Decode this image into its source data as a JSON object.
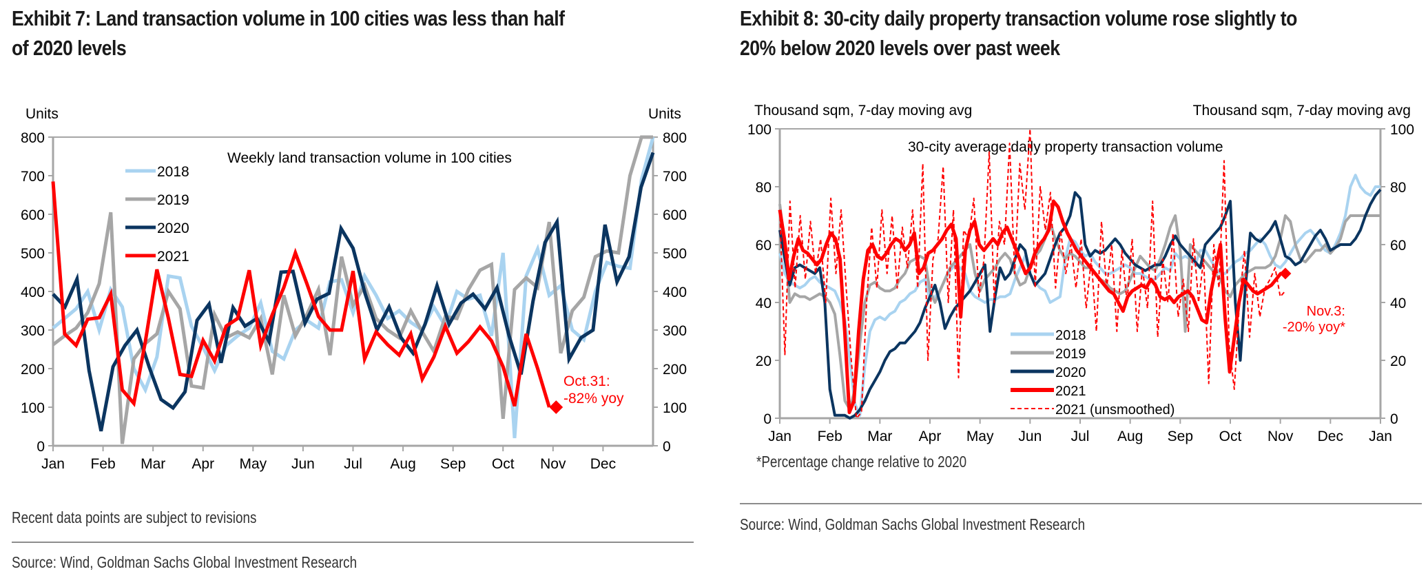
{
  "exhibit7": {
    "title_line1": "Exhibit 7: Land transaction volume in 100 cities was less than half",
    "title_line2": "of 2020 levels",
    "note": "Recent data points are subject to revisions",
    "source": "Source: Wind, Goldman Sachs Global Investment Research"
  },
  "exhibit8": {
    "title_line1": "Exhibit 8: 30-city daily property transaction volume rose slightly to",
    "title_line2": "20% below 2020 levels over past week",
    "footnote": "*Percentage change relative to 2020",
    "source": "Source: Wind, Goldman Sachs Global Investment Research"
  },
  "chart_data": [
    {
      "type": "line",
      "title": "Weekly land transaction volume in 100 cities",
      "ylabel_left": "Units",
      "ylabel_right": "Units",
      "xlabel": "",
      "ylim": [
        0,
        800
      ],
      "yticks": [
        "0",
        "100",
        "200",
        "300",
        "400",
        "500",
        "600",
        "700",
        "800"
      ],
      "categories": [
        "Jan",
        "Feb",
        "Mar",
        "Apr",
        "May",
        "Jun",
        "Jul",
        "Aug",
        "Sep",
        "Oct",
        "Nov",
        "Dec"
      ],
      "x_unit": "week of year (0 = start of Jan, 52 = end of Dec)",
      "grid": false,
      "legend_position": "top-left",
      "annotation": {
        "text_line1": "Oct.31:",
        "text_line2": "-82% yoy",
        "x_week": 43.6,
        "y": 100
      },
      "series": [
        {
          "name": "2018",
          "color": "#A9D3F0",
          "values": [
            305,
            330,
            355,
            400,
            300,
            405,
            360,
            200,
            145,
            230,
            440,
            435,
            310,
            255,
            195,
            260,
            285,
            305,
            370,
            245,
            225,
            300,
            325,
            305,
            425,
            430,
            345,
            440,
            390,
            330,
            350,
            320,
            300,
            360,
            310,
            400,
            380,
            390,
            285,
            500,
            20,
            440,
            510,
            390,
            415,
            300,
            275,
            400,
            475,
            465,
            460,
            690,
            800
          ]
        },
        {
          "name": "2019",
          "color": "#A6A6A6",
          "values": [
            262,
            285,
            305,
            345,
            420,
            605,
            5,
            225,
            265,
            290,
            400,
            355,
            155,
            150,
            340,
            280,
            295,
            280,
            330,
            185,
            390,
            285,
            340,
            405,
            235,
            490,
            365,
            415,
            330,
            300,
            280,
            350,
            295,
            245,
            335,
            330,
            405,
            455,
            470,
            70,
            405,
            435,
            410,
            580,
            240,
            350,
            385,
            490,
            505,
            500,
            700,
            800,
            800
          ]
        },
        {
          "name": "2020",
          "color": "#0B3560",
          "values": [
            393,
            360,
            432,
            195,
            38,
            205,
            260,
            300,
            205,
            120,
            98,
            140,
            325,
            367,
            215,
            358,
            310,
            330,
            270,
            450,
            452,
            318,
            380,
            395,
            563,
            512,
            395,
            300,
            360,
            280,
            240,
            315,
            415,
            315,
            370,
            393,
            355,
            410,
            285,
            185,
            375,
            527,
            580,
            225,
            280,
            300,
            573,
            425,
            490,
            670,
            760
          ]
        },
        {
          "name": "2021",
          "color": "#FF0000",
          "values": [
            685,
            290,
            260,
            328,
            332,
            393,
            145,
            110,
            270,
            457,
            330,
            185,
            180,
            273,
            220,
            310,
            330,
            455,
            260,
            340,
            410,
            500,
            420,
            335,
            300,
            300,
            453,
            225,
            295,
            262,
            235,
            290,
            173,
            230,
            310,
            240,
            270,
            308,
            272,
            205,
            103,
            290,
            200,
            100
          ]
        }
      ]
    },
    {
      "type": "line",
      "title": "30-city average daily property transaction volume",
      "ylabel_left": "Thousand sqm, 7-day moving avg",
      "ylabel_right": "Thousand sqm, 7-day moving avg",
      "xlabel": "",
      "ylim": [
        0,
        100
      ],
      "yticks": [
        "0",
        "20",
        "40",
        "60",
        "80",
        "100"
      ],
      "categories": [
        "Jan",
        "Feb",
        "Mar",
        "Apr",
        "May",
        "Jun",
        "Jul",
        "Aug",
        "Sep",
        "Oct",
        "Nov",
        "Dec",
        "Jan"
      ],
      "x_unit": "months from Jan 1 (0 to 12)",
      "grid": false,
      "legend_position": "bottom-center",
      "annotation": {
        "text_line1": "Nov.3:",
        "text_line2": "-20% yoy*",
        "x_month": 10.1,
        "y": 50
      },
      "sample_step_months": 0.1,
      "series": [
        {
          "name": "2018",
          "color": "#A9D3F0",
          "style": "solid",
          "values": [
            57,
            50,
            47,
            46,
            45,
            46,
            48,
            49,
            47,
            46,
            45,
            44,
            40,
            34,
            20,
            5,
            1,
            18,
            30,
            34,
            35,
            34,
            36,
            37,
            40,
            41,
            43,
            44,
            47,
            48,
            41,
            42,
            44,
            48,
            51,
            53,
            52,
            50,
            44,
            42,
            41,
            40,
            41,
            41,
            42,
            42,
            43,
            48,
            52,
            56,
            50,
            47,
            45,
            44,
            40,
            41,
            42,
            55,
            62,
            61,
            58,
            56,
            57,
            54,
            52,
            50,
            50,
            51,
            52,
            53,
            52,
            50,
            50,
            49,
            48,
            48,
            50,
            52,
            51,
            57,
            55,
            56,
            55,
            53,
            58,
            58,
            55,
            52,
            50,
            50,
            52,
            54,
            55,
            57,
            58,
            60,
            62,
            60,
            56,
            53,
            52,
            54,
            57,
            60,
            62,
            64,
            65,
            63,
            60,
            58,
            57,
            60,
            64,
            70,
            80,
            84,
            80,
            78,
            77,
            80,
            80
          ]
        },
        {
          "name": "2019",
          "color": "#A6A6A6",
          "style": "solid",
          "values": [
            74,
            60,
            40,
            43,
            42,
            42,
            41,
            42,
            43,
            42,
            40,
            36,
            22,
            6,
            3,
            10,
            26,
            40,
            46,
            47,
            45,
            44,
            44,
            45,
            48,
            50,
            54,
            55,
            56,
            55,
            44,
            40,
            44,
            48,
            52,
            54,
            56,
            58,
            60,
            50,
            44,
            48,
            50,
            52,
            55,
            57,
            55,
            50,
            46,
            47,
            52,
            56,
            58,
            62,
            68,
            62,
            58,
            55,
            57,
            56,
            54,
            52,
            52,
            50,
            48,
            47,
            45,
            44,
            43,
            44,
            48,
            52,
            56,
            54,
            52,
            51,
            55,
            60,
            66,
            70,
            58,
            30,
            60,
            58,
            56,
            54,
            52,
            50,
            48,
            44,
            42,
            46,
            48,
            50,
            51,
            52,
            52,
            52,
            53,
            56,
            62,
            70,
            68,
            60,
            55,
            54,
            56,
            58,
            58,
            60,
            57,
            59,
            62,
            68,
            70,
            70,
            70,
            70,
            70,
            70,
            70
          ]
        },
        {
          "name": "2020",
          "color": "#0B3560",
          "style": "solid",
          "values": [
            65,
            55,
            46,
            52,
            53,
            52,
            51,
            50,
            52,
            40,
            10,
            1,
            1,
            1,
            0,
            1,
            3,
            6,
            10,
            13,
            16,
            20,
            23,
            24,
            26,
            26,
            28,
            30,
            33,
            38,
            42,
            46,
            40,
            31,
            35,
            38,
            40,
            42,
            44,
            47,
            50,
            53,
            30,
            42,
            52,
            48,
            50,
            55,
            60,
            58,
            50,
            46,
            48,
            50,
            55,
            60,
            64,
            66,
            70,
            78,
            76,
            60,
            56,
            58,
            57,
            58,
            60,
            62,
            60,
            57,
            55,
            53,
            52,
            51,
            52,
            53,
            53,
            56,
            60,
            63,
            60,
            58,
            56,
            54,
            52,
            60,
            62,
            64,
            66,
            70,
            75,
            40,
            20,
            45,
            64,
            62,
            61,
            63,
            65,
            68,
            62,
            56,
            55,
            53,
            54,
            57,
            60,
            63,
            65,
            62,
            58,
            59,
            60,
            60,
            60,
            62,
            65,
            70,
            74,
            77,
            79
          ]
        },
        {
          "name": "2021",
          "color": "#FF0000",
          "style": "solid",
          "values": [
            72,
            62,
            48,
            56,
            62,
            58,
            57,
            55,
            53,
            55,
            60,
            64,
            62,
            55,
            30,
            2,
            6,
            30,
            48,
            58,
            60,
            56,
            55,
            57,
            60,
            62,
            61,
            58,
            60,
            64,
            50,
            52,
            57,
            58,
            60,
            62,
            65,
            67,
            62,
            35,
            58,
            65,
            68,
            60,
            58,
            60,
            62,
            60,
            64,
            66,
            62,
            58,
            54,
            50,
            52,
            57,
            60,
            62,
            65,
            75,
            73,
            68,
            64,
            61,
            58,
            56,
            54,
            52,
            50,
            48,
            46,
            44,
            43,
            40,
            37,
            42,
            44,
            45,
            46,
            45,
            48,
            46,
            42,
            41,
            42,
            40,
            42,
            43,
            44,
            42,
            38,
            34,
            33,
            44,
            52,
            60,
            35,
            16,
            28,
            40,
            48,
            46,
            44,
            43,
            44,
            45,
            46,
            48,
            50,
            50
          ]
        },
        {
          "name": "2021 (unsmoothed)",
          "color": "#FF0000",
          "style": "dashed",
          "values": [
            72,
            22,
            75,
            45,
            70,
            48,
            68,
            50,
            62,
            40,
            76,
            50,
            72,
            45,
            20,
            0,
            2,
            40,
            66,
            45,
            72,
            50,
            70,
            45,
            66,
            52,
            72,
            45,
            88,
            20,
            55,
            62,
            87,
            40,
            72,
            14,
            65,
            62,
            76,
            42,
            55,
            92,
            40,
            68,
            60,
            95,
            50,
            88,
            72,
            100,
            45,
            80,
            65,
            78,
            45,
            65,
            50,
            60,
            45,
            62,
            38,
            55,
            30,
            68,
            45,
            60,
            30,
            58,
            40,
            62,
            30,
            52,
            38,
            75,
            28,
            55,
            40,
            64,
            35,
            48,
            30,
            62,
            40,
            55,
            12,
            60,
            45,
            89,
            25,
            10,
            40,
            58,
            28,
            50,
            35,
            45,
            48,
            52,
            42,
            44
          ]
        }
      ]
    }
  ]
}
